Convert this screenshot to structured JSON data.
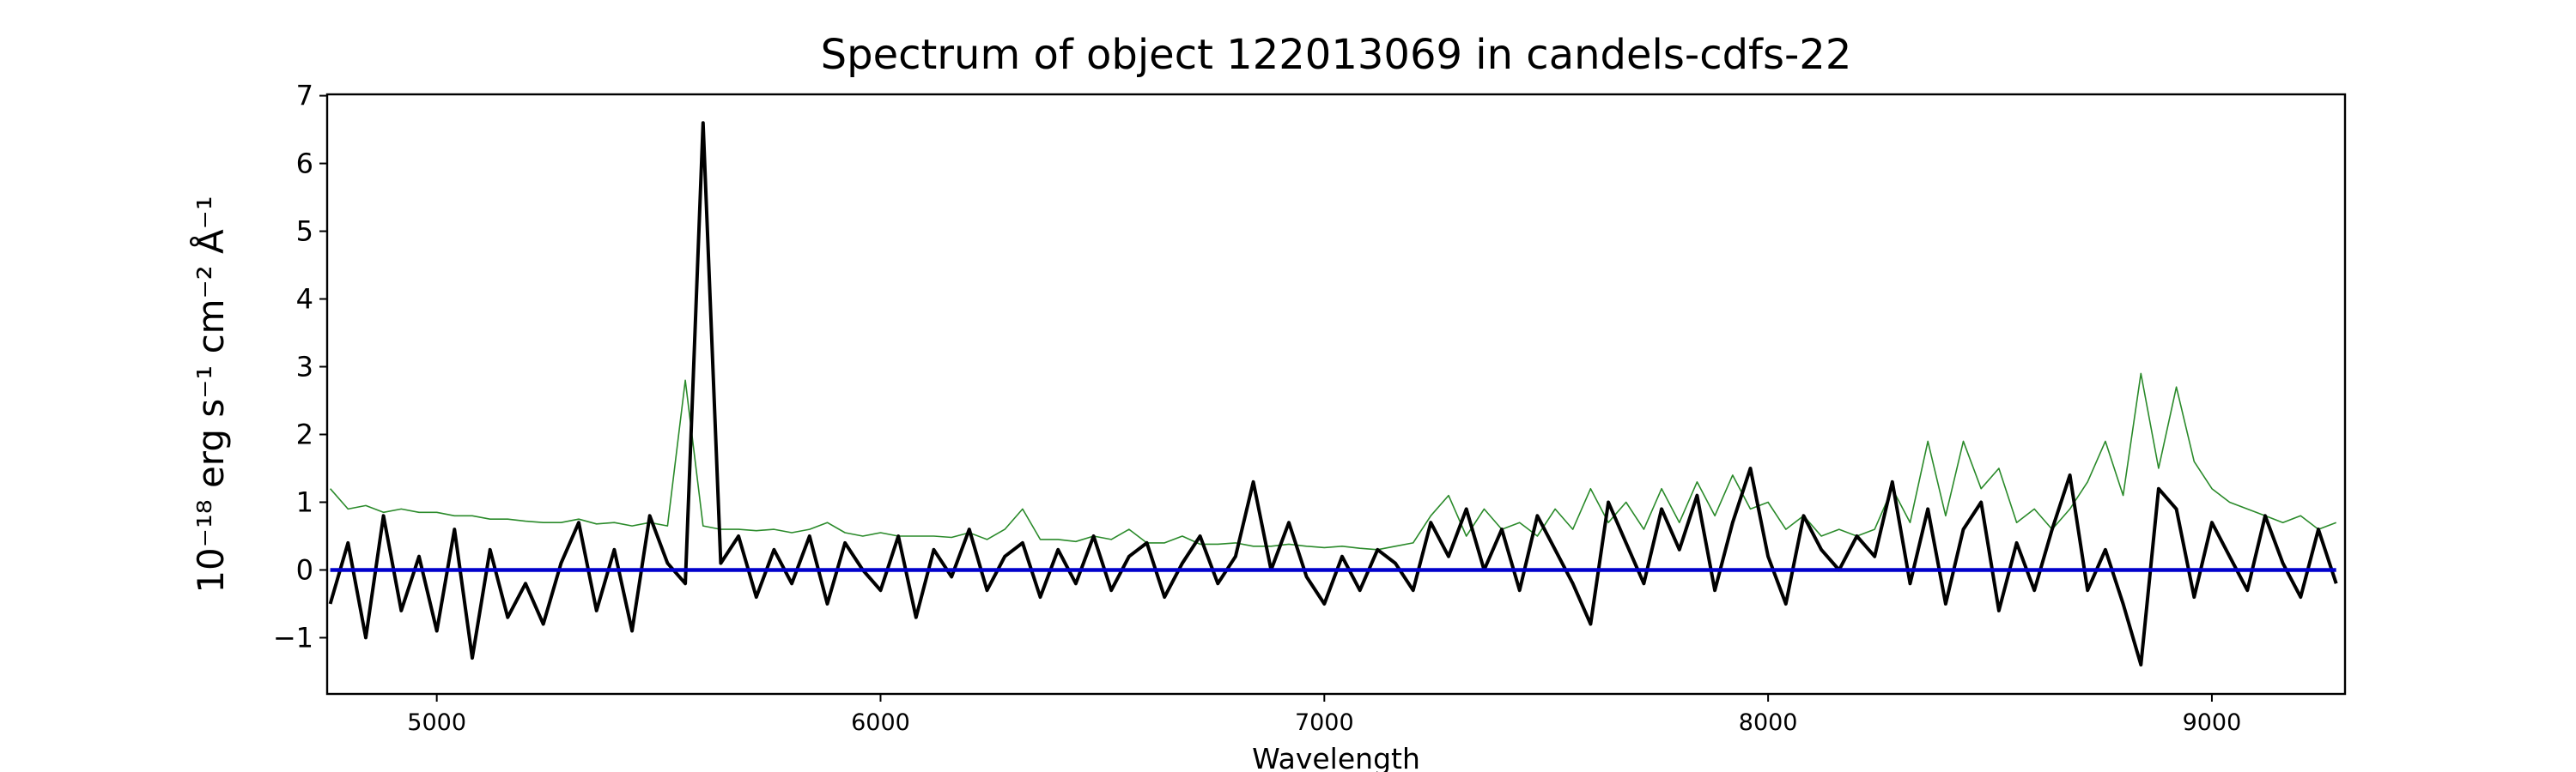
{
  "chart_data": {
    "type": "line",
    "title": "Spectrum of object 122013069 in candels-cdfs-22",
    "x_label": "Wavelength",
    "y_label": "10⁻¹⁸ erg s⁻¹ cm⁻² Å⁻¹",
    "xlim": [
      4753,
      9300
    ],
    "ylim": [
      -1.83,
      7.02
    ],
    "xticks": [
      5000,
      6000,
      7000,
      8000,
      9000
    ],
    "yticks": [
      {
        "value": -1,
        "label": "−1"
      },
      0,
      1,
      2,
      3,
      4,
      5,
      6,
      7
    ],
    "x": [
      4760,
      4800,
      4840,
      4880,
      4920,
      4960,
      5000,
      5040,
      5080,
      5120,
      5160,
      5200,
      5240,
      5280,
      5320,
      5360,
      5400,
      5440,
      5480,
      5520,
      5560,
      5600,
      5640,
      5680,
      5720,
      5760,
      5800,
      5840,
      5880,
      5920,
      5960,
      6000,
      6040,
      6080,
      6120,
      6160,
      6200,
      6240,
      6280,
      6320,
      6360,
      6400,
      6440,
      6480,
      6520,
      6560,
      6600,
      6640,
      6680,
      6720,
      6760,
      6800,
      6840,
      6880,
      6920,
      6960,
      7000,
      7040,
      7080,
      7120,
      7160,
      7200,
      7240,
      7280,
      7320,
      7360,
      7400,
      7440,
      7480,
      7520,
      7560,
      7600,
      7640,
      7680,
      7720,
      7760,
      7800,
      7840,
      7880,
      7920,
      7960,
      8000,
      8040,
      8080,
      8120,
      8160,
      8200,
      8240,
      8280,
      8320,
      8360,
      8400,
      8440,
      8480,
      8520,
      8560,
      8600,
      8640,
      8680,
      8720,
      8760,
      8800,
      8840,
      8880,
      8920,
      8960,
      9000,
      9040,
      9080,
      9120,
      9160,
      9200,
      9240,
      9280
    ],
    "series": [
      {
        "color": "#2a8a2a",
        "width": 1.6,
        "values": [
          1.2,
          0.9,
          0.95,
          0.85,
          0.9,
          0.85,
          0.85,
          0.8,
          0.8,
          0.75,
          0.75,
          0.72,
          0.7,
          0.7,
          0.75,
          0.68,
          0.7,
          0.65,
          0.7,
          0.65,
          2.8,
          0.65,
          0.6,
          0.6,
          0.58,
          0.6,
          0.55,
          0.6,
          0.7,
          0.55,
          0.5,
          0.55,
          0.5,
          0.5,
          0.5,
          0.48,
          0.55,
          0.45,
          0.6,
          0.9,
          0.45,
          0.45,
          0.42,
          0.5,
          0.45,
          0.6,
          0.4,
          0.4,
          0.5,
          0.38,
          0.38,
          0.4,
          0.35,
          0.35,
          0.38,
          0.35,
          0.33,
          0.35,
          0.32,
          0.3,
          0.35,
          0.4,
          0.8,
          1.1,
          0.5,
          0.9,
          0.6,
          0.7,
          0.5,
          0.9,
          0.6,
          1.2,
          0.7,
          1.0,
          0.6,
          1.2,
          0.7,
          1.3,
          0.8,
          1.4,
          0.9,
          1.0,
          0.6,
          0.8,
          0.5,
          0.6,
          0.5,
          0.6,
          1.2,
          0.7,
          1.9,
          0.8,
          1.9,
          1.2,
          1.5,
          0.7,
          0.9,
          0.6,
          0.9,
          1.3,
          1.9,
          1.1,
          2.9,
          1.5,
          2.7,
          1.6,
          1.2,
          1.0,
          0.9,
          0.8,
          0.7,
          0.8,
          0.6,
          0.7
        ]
      },
      {
        "color": "#000000",
        "width": 4,
        "values": [
          -0.5,
          0.4,
          -1.0,
          0.8,
          -0.6,
          0.2,
          -0.9,
          0.6,
          -1.3,
          0.3,
          -0.7,
          -0.2,
          -0.8,
          0.1,
          0.7,
          -0.6,
          0.3,
          -0.9,
          0.8,
          0.1,
          -0.2,
          6.6,
          0.1,
          0.5,
          -0.4,
          0.3,
          -0.2,
          0.5,
          -0.5,
          0.4,
          0.0,
          -0.3,
          0.5,
          -0.7,
          0.3,
          -0.1,
          0.6,
          -0.3,
          0.2,
          0.4,
          -0.4,
          0.3,
          -0.2,
          0.5,
          -0.3,
          0.2,
          0.4,
          -0.4,
          0.1,
          0.5,
          -0.2,
          0.2,
          1.3,
          0.0,
          0.7,
          -0.1,
          -0.5,
          0.2,
          -0.3,
          0.3,
          0.1,
          -0.3,
          0.7,
          0.2,
          0.9,
          0.0,
          0.6,
          -0.3,
          0.8,
          0.3,
          -0.2,
          -0.8,
          1.0,
          0.4,
          -0.2,
          0.9,
          0.3,
          1.1,
          -0.3,
          0.7,
          1.5,
          0.2,
          -0.5,
          0.8,
          0.3,
          0.0,
          0.5,
          0.2,
          1.3,
          -0.2,
          0.9,
          -0.5,
          0.6,
          1.0,
          -0.6,
          0.4,
          -0.3,
          0.6,
          1.4,
          -0.3,
          0.3,
          -0.5,
          -1.4,
          1.2,
          0.9,
          -0.4,
          0.7,
          0.2,
          -0.3,
          0.8,
          0.1,
          -0.4,
          0.6,
          -0.2
        ]
      },
      {
        "color": "#0000cc",
        "width": 4.5,
        "x": [
          4760,
          9280
        ],
        "values": [
          0,
          0
        ]
      }
    ]
  }
}
